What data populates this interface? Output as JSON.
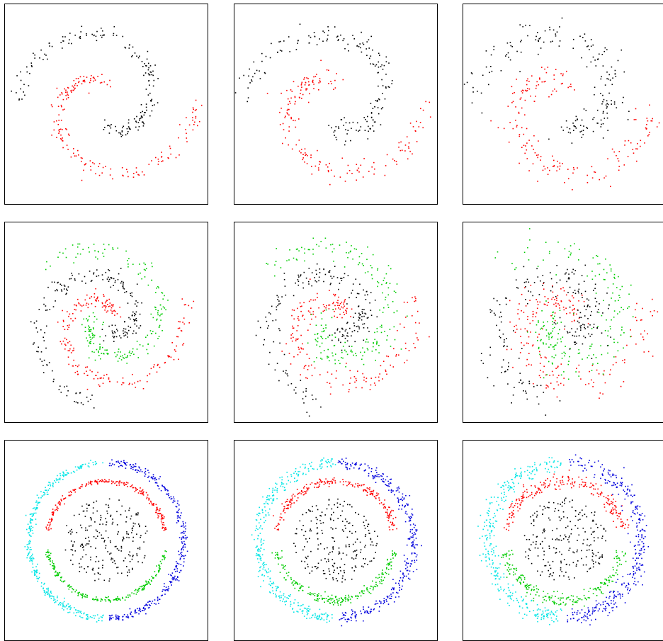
{
  "chart_data": [
    {
      "type": "scatter",
      "title": "",
      "grid": false,
      "legend": "none",
      "dataset": "two-spirals",
      "noise": "low",
      "series": [
        {
          "color": "#ff0000",
          "count": 180,
          "params": {
            "arms": 2,
            "arm": 0,
            "sigma": 0.035
          }
        },
        {
          "color": "#000000",
          "count": 180,
          "params": {
            "arms": 2,
            "arm": 1,
            "sigma": 0.035
          }
        }
      ]
    },
    {
      "type": "scatter",
      "title": "",
      "grid": false,
      "legend": "none",
      "dataset": "two-spirals",
      "noise": "medium",
      "series": [
        {
          "color": "#ff0000",
          "count": 180,
          "params": {
            "arms": 2,
            "arm": 0,
            "sigma": 0.055
          }
        },
        {
          "color": "#000000",
          "count": 180,
          "params": {
            "arms": 2,
            "arm": 1,
            "sigma": 0.055
          }
        }
      ]
    },
    {
      "type": "scatter",
      "title": "",
      "grid": false,
      "legend": "none",
      "dataset": "two-spirals",
      "noise": "high",
      "series": [
        {
          "color": "#ff0000",
          "count": 180,
          "params": {
            "arms": 2,
            "arm": 0,
            "sigma": 0.08
          }
        },
        {
          "color": "#000000",
          "count": 180,
          "params": {
            "arms": 2,
            "arm": 1,
            "sigma": 0.08
          }
        }
      ]
    },
    {
      "type": "scatter",
      "title": "",
      "grid": false,
      "legend": "none",
      "dataset": "three-spirals",
      "noise": "low",
      "series": [
        {
          "color": "#ff0000",
          "count": 200,
          "params": {
            "arms": 3,
            "arm": 0,
            "sigma": 0.04
          }
        },
        {
          "color": "#00cc00",
          "count": 200,
          "params": {
            "arms": 3,
            "arm": 1,
            "sigma": 0.04
          }
        },
        {
          "color": "#000000",
          "count": 200,
          "params": {
            "arms": 3,
            "arm": 2,
            "sigma": 0.04
          }
        }
      ]
    },
    {
      "type": "scatter",
      "title": "",
      "grid": false,
      "legend": "none",
      "dataset": "three-spirals",
      "noise": "medium",
      "series": [
        {
          "color": "#ff0000",
          "count": 200,
          "params": {
            "arms": 3,
            "arm": 0,
            "sigma": 0.06
          }
        },
        {
          "color": "#00cc00",
          "count": 200,
          "params": {
            "arms": 3,
            "arm": 1,
            "sigma": 0.06
          }
        },
        {
          "color": "#000000",
          "count": 200,
          "params": {
            "arms": 3,
            "arm": 2,
            "sigma": 0.06
          }
        }
      ]
    },
    {
      "type": "scatter",
      "title": "",
      "grid": false,
      "legend": "none",
      "dataset": "three-spirals",
      "noise": "high",
      "series": [
        {
          "color": "#ff0000",
          "count": 200,
          "params": {
            "arms": 3,
            "arm": 0,
            "sigma": 0.085
          }
        },
        {
          "color": "#00cc00",
          "count": 200,
          "params": {
            "arms": 3,
            "arm": 1,
            "sigma": 0.085
          }
        },
        {
          "color": "#000000",
          "count": 200,
          "params": {
            "arms": 3,
            "arm": 2,
            "sigma": 0.085
          }
        }
      ]
    },
    {
      "type": "scatter",
      "title": "",
      "grid": false,
      "legend": "none",
      "dataset": "rings",
      "noise": "low",
      "series": [
        {
          "color": "#000000",
          "count": 220,
          "params": {
            "shape": "disk",
            "rmax": 0.4,
            "sigma": 0
          }
        },
        {
          "color": "#ff0000",
          "count": 220,
          "params": {
            "shape": "arc",
            "r": 0.56,
            "a0": 10,
            "a1": 170,
            "sigma": 0.012
          }
        },
        {
          "color": "#00cc00",
          "count": 220,
          "params": {
            "shape": "arc",
            "r": 0.56,
            "a0": 190,
            "a1": 350,
            "sigma": 0.012
          }
        },
        {
          "color": "#00e5e5",
          "count": 320,
          "params": {
            "shape": "arc",
            "r": 0.73,
            "a0": 92,
            "a1": 268,
            "sigma": 0.018
          }
        },
        {
          "color": "#0000dd",
          "count": 320,
          "params": {
            "shape": "arc",
            "r": 0.73,
            "a0": 272,
            "a1": 448,
            "sigma": 0.018
          }
        }
      ]
    },
    {
      "type": "scatter",
      "title": "",
      "grid": false,
      "legend": "none",
      "dataset": "rings",
      "noise": "medium",
      "series": [
        {
          "color": "#000000",
          "count": 220,
          "params": {
            "shape": "disk",
            "rmax": 0.4,
            "sigma": 0
          }
        },
        {
          "color": "#ff0000",
          "count": 220,
          "params": {
            "shape": "arc",
            "r": 0.56,
            "a0": 10,
            "a1": 170,
            "sigma": 0.02
          }
        },
        {
          "color": "#00cc00",
          "count": 220,
          "params": {
            "shape": "arc",
            "r": 0.56,
            "a0": 190,
            "a1": 350,
            "sigma": 0.02
          }
        },
        {
          "color": "#00e5e5",
          "count": 320,
          "params": {
            "shape": "arc",
            "r": 0.73,
            "a0": 92,
            "a1": 268,
            "sigma": 0.028
          }
        },
        {
          "color": "#0000dd",
          "count": 320,
          "params": {
            "shape": "arc",
            "r": 0.73,
            "a0": 272,
            "a1": 448,
            "sigma": 0.028
          }
        }
      ]
    },
    {
      "type": "scatter",
      "title": "",
      "grid": false,
      "legend": "none",
      "dataset": "rings",
      "noise": "high",
      "series": [
        {
          "color": "#000000",
          "count": 220,
          "params": {
            "shape": "disk",
            "rmax": 0.4,
            "sigma": 0
          }
        },
        {
          "color": "#ff0000",
          "count": 220,
          "params": {
            "shape": "arc",
            "r": 0.56,
            "a0": 10,
            "a1": 170,
            "sigma": 0.03
          }
        },
        {
          "color": "#00cc00",
          "count": 220,
          "params": {
            "shape": "arc",
            "r": 0.56,
            "a0": 190,
            "a1": 350,
            "sigma": 0.03
          }
        },
        {
          "color": "#00e5e5",
          "count": 320,
          "params": {
            "shape": "arc",
            "r": 0.73,
            "a0": 92,
            "a1": 268,
            "sigma": 0.04
          }
        },
        {
          "color": "#0000dd",
          "count": 320,
          "params": {
            "shape": "arc",
            "r": 0.73,
            "a0": 272,
            "a1": 448,
            "sigma": 0.04
          }
        }
      ]
    }
  ]
}
